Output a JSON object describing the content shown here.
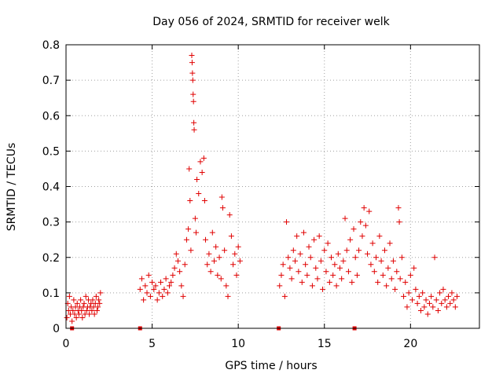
{
  "chart_data": {
    "type": "scatter",
    "title": "Day 056 of 2024, SRMTID for receiver welk",
    "xlabel": "GPS time / hours",
    "ylabel": "SRMTID / TECUs",
    "xlim": [
      0,
      24
    ],
    "ylim": [
      0,
      0.8
    ],
    "x_ticks": [
      0,
      5,
      10,
      15,
      20
    ],
    "y_ticks": [
      0,
      0.1,
      0.2,
      0.3,
      0.4,
      0.5,
      0.6,
      0.7,
      0.8
    ],
    "x_tick_labels": [
      "0",
      "5",
      "10",
      "15",
      "20"
    ],
    "y_tick_labels": [
      "0",
      "0.1",
      "0.2",
      "0.3",
      "0.4",
      "0.5",
      "0.6",
      "0.7",
      "0.8"
    ],
    "grid": true,
    "marker": "plus",
    "marker_color": "#e00000",
    "gap_markers_x": [
      0.35,
      4.3,
      12.35,
      16.75
    ],
    "series": [
      {
        "name": "SRMTID",
        "points": [
          [
            0.05,
            0.03
          ],
          [
            0.1,
            0.07
          ],
          [
            0.15,
            0.05
          ],
          [
            0.2,
            0.09
          ],
          [
            0.25,
            0.04
          ],
          [
            0.3,
            0.06
          ],
          [
            0.35,
            0.02
          ],
          [
            0.4,
            0.05
          ],
          [
            0.45,
            0.08
          ],
          [
            0.5,
            0.04
          ],
          [
            0.55,
            0.06
          ],
          [
            0.6,
            0.03
          ],
          [
            0.65,
            0.07
          ],
          [
            0.7,
            0.05
          ],
          [
            0.75,
            0.04
          ],
          [
            0.8,
            0.06
          ],
          [
            0.85,
            0.08
          ],
          [
            0.9,
            0.05
          ],
          [
            0.95,
            0.03
          ],
          [
            1.0,
            0.06
          ],
          [
            1.05,
            0.07
          ],
          [
            1.1,
            0.04
          ],
          [
            1.15,
            0.09
          ],
          [
            1.2,
            0.05
          ],
          [
            1.25,
            0.06
          ],
          [
            1.3,
            0.08
          ],
          [
            1.35,
            0.04
          ],
          [
            1.4,
            0.06
          ],
          [
            1.45,
            0.07
          ],
          [
            1.5,
            0.05
          ],
          [
            1.55,
            0.08
          ],
          [
            1.6,
            0.06
          ],
          [
            1.65,
            0.04
          ],
          [
            1.7,
            0.07
          ],
          [
            1.75,
            0.09
          ],
          [
            1.8,
            0.05
          ],
          [
            1.85,
            0.06
          ],
          [
            1.9,
            0.08
          ],
          [
            1.95,
            0.07
          ],
          [
            2.0,
            0.1
          ],
          [
            4.3,
            0.11
          ],
          [
            4.4,
            0.14
          ],
          [
            4.5,
            0.08
          ],
          [
            4.6,
            0.12
          ],
          [
            4.7,
            0.1
          ],
          [
            4.8,
            0.15
          ],
          [
            4.9,
            0.09
          ],
          [
            5.0,
            0.13
          ],
          [
            5.1,
            0.11
          ],
          [
            5.2,
            0.12
          ],
          [
            5.3,
            0.08
          ],
          [
            5.4,
            0.1
          ],
          [
            5.5,
            0.13
          ],
          [
            5.6,
            0.09
          ],
          [
            5.7,
            0.11
          ],
          [
            5.8,
            0.14
          ],
          [
            5.9,
            0.1
          ],
          [
            6.0,
            0.12
          ],
          [
            6.1,
            0.13
          ],
          [
            6.2,
            0.15
          ],
          [
            6.3,
            0.17
          ],
          [
            6.4,
            0.21
          ],
          [
            6.5,
            0.19
          ],
          [
            6.6,
            0.16
          ],
          [
            6.7,
            0.12
          ],
          [
            6.8,
            0.09
          ],
          [
            6.9,
            0.18
          ],
          [
            7.0,
            0.25
          ],
          [
            7.1,
            0.28
          ],
          [
            7.15,
            0.45
          ],
          [
            7.2,
            0.36
          ],
          [
            7.25,
            0.22
          ],
          [
            7.3,
            0.77
          ],
          [
            7.32,
            0.75
          ],
          [
            7.34,
            0.72
          ],
          [
            7.36,
            0.7
          ],
          [
            7.38,
            0.66
          ],
          [
            7.4,
            0.64
          ],
          [
            7.42,
            0.58
          ],
          [
            7.44,
            0.56
          ],
          [
            7.5,
            0.31
          ],
          [
            7.55,
            0.27
          ],
          [
            7.6,
            0.42
          ],
          [
            7.7,
            0.38
          ],
          [
            7.8,
            0.47
          ],
          [
            7.9,
            0.44
          ],
          [
            8.0,
            0.48
          ],
          [
            8.05,
            0.36
          ],
          [
            8.1,
            0.25
          ],
          [
            8.2,
            0.18
          ],
          [
            8.3,
            0.21
          ],
          [
            8.4,
            0.16
          ],
          [
            8.5,
            0.27
          ],
          [
            8.6,
            0.19
          ],
          [
            8.7,
            0.23
          ],
          [
            8.8,
            0.15
          ],
          [
            8.9,
            0.2
          ],
          [
            9.0,
            0.14
          ],
          [
            9.05,
            0.37
          ],
          [
            9.1,
            0.34
          ],
          [
            9.2,
            0.22
          ],
          [
            9.3,
            0.12
          ],
          [
            9.4,
            0.09
          ],
          [
            9.5,
            0.32
          ],
          [
            9.6,
            0.26
          ],
          [
            9.7,
            0.18
          ],
          [
            9.8,
            0.21
          ],
          [
            9.9,
            0.15
          ],
          [
            10.0,
            0.23
          ],
          [
            10.1,
            0.19
          ],
          [
            12.4,
            0.12
          ],
          [
            12.5,
            0.15
          ],
          [
            12.6,
            0.18
          ],
          [
            12.7,
            0.09
          ],
          [
            12.8,
            0.3
          ],
          [
            12.9,
            0.2
          ],
          [
            13.0,
            0.17
          ],
          [
            13.1,
            0.14
          ],
          [
            13.2,
            0.22
          ],
          [
            13.3,
            0.19
          ],
          [
            13.4,
            0.26
          ],
          [
            13.5,
            0.16
          ],
          [
            13.6,
            0.21
          ],
          [
            13.7,
            0.13
          ],
          [
            13.8,
            0.27
          ],
          [
            13.9,
            0.18
          ],
          [
            14.0,
            0.15
          ],
          [
            14.1,
            0.23
          ],
          [
            14.2,
            0.2
          ],
          [
            14.3,
            0.12
          ],
          [
            14.4,
            0.25
          ],
          [
            14.5,
            0.17
          ],
          [
            14.6,
            0.14
          ],
          [
            14.7,
            0.26
          ],
          [
            14.8,
            0.19
          ],
          [
            14.9,
            0.11
          ],
          [
            15.0,
            0.22
          ],
          [
            15.1,
            0.16
          ],
          [
            15.2,
            0.24
          ],
          [
            15.3,
            0.13
          ],
          [
            15.4,
            0.2
          ],
          [
            15.5,
            0.15
          ],
          [
            15.6,
            0.18
          ],
          [
            15.7,
            0.12
          ],
          [
            15.8,
            0.21
          ],
          [
            15.9,
            0.17
          ],
          [
            16.0,
            0.14
          ],
          [
            16.1,
            0.19
          ],
          [
            16.2,
            0.31
          ],
          [
            16.3,
            0.22
          ],
          [
            16.4,
            0.16
          ],
          [
            16.5,
            0.25
          ],
          [
            16.6,
            0.13
          ],
          [
            16.7,
            0.28
          ],
          [
            16.8,
            0.2
          ],
          [
            16.9,
            0.15
          ],
          [
            17.0,
            0.22
          ],
          [
            17.1,
            0.3
          ],
          [
            17.2,
            0.26
          ],
          [
            17.3,
            0.34
          ],
          [
            17.4,
            0.29
          ],
          [
            17.5,
            0.21
          ],
          [
            17.6,
            0.33
          ],
          [
            17.7,
            0.18
          ],
          [
            17.8,
            0.24
          ],
          [
            17.9,
            0.16
          ],
          [
            18.0,
            0.2
          ],
          [
            18.1,
            0.13
          ],
          [
            18.2,
            0.26
          ],
          [
            18.3,
            0.19
          ],
          [
            18.4,
            0.15
          ],
          [
            18.5,
            0.22
          ],
          [
            18.6,
            0.12
          ],
          [
            18.7,
            0.17
          ],
          [
            18.8,
            0.24
          ],
          [
            18.9,
            0.14
          ],
          [
            19.0,
            0.19
          ],
          [
            19.1,
            0.11
          ],
          [
            19.2,
            0.16
          ],
          [
            19.3,
            0.34
          ],
          [
            19.35,
            0.3
          ],
          [
            19.4,
            0.14
          ],
          [
            19.5,
            0.2
          ],
          [
            19.6,
            0.09
          ],
          [
            19.7,
            0.13
          ],
          [
            19.8,
            0.06
          ],
          [
            19.9,
            0.1
          ],
          [
            20.0,
            0.15
          ],
          [
            20.1,
            0.08
          ],
          [
            20.2,
            0.17
          ],
          [
            20.3,
            0.11
          ],
          [
            20.4,
            0.07
          ],
          [
            20.5,
            0.09
          ],
          [
            20.6,
            0.05
          ],
          [
            20.7,
            0.1
          ],
          [
            20.8,
            0.06
          ],
          [
            20.9,
            0.08
          ],
          [
            21.0,
            0.04
          ],
          [
            21.1,
            0.07
          ],
          [
            21.2,
            0.09
          ],
          [
            21.3,
            0.06
          ],
          [
            21.4,
            0.2
          ],
          [
            21.5,
            0.08
          ],
          [
            21.6,
            0.05
          ],
          [
            21.7,
            0.1
          ],
          [
            21.8,
            0.07
          ],
          [
            21.9,
            0.11
          ],
          [
            22.0,
            0.08
          ],
          [
            22.1,
            0.06
          ],
          [
            22.2,
            0.09
          ],
          [
            22.3,
            0.07
          ],
          [
            22.4,
            0.1
          ],
          [
            22.5,
            0.08
          ],
          [
            22.6,
            0.06
          ],
          [
            22.7,
            0.09
          ]
        ]
      }
    ]
  }
}
